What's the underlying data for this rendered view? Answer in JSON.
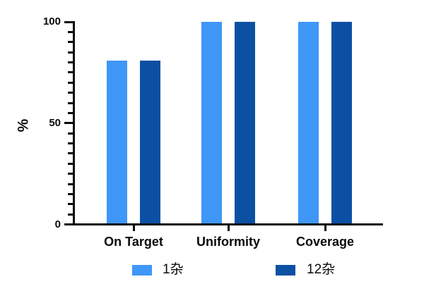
{
  "chart_data": {
    "type": "bar",
    "title": "",
    "categories": [
      "On Target",
      "Uniformity",
      "Coverage"
    ],
    "series": [
      {
        "name": "1杂",
        "color": "#3F97F8",
        "values": [
          81,
          100,
          100
        ]
      },
      {
        "name": "12杂",
        "color": "#0C50A4",
        "values": [
          81,
          100,
          100
        ]
      }
    ],
    "xlabel": "",
    "ylabel": "%",
    "ylim": [
      0,
      100
    ],
    "yticks": [
      0,
      50,
      100
    ],
    "minor_tick_step": 5,
    "grid": false,
    "legend_position": "bottom",
    "axis_color": "#0a0a0a",
    "background_color": "#ffffff"
  }
}
